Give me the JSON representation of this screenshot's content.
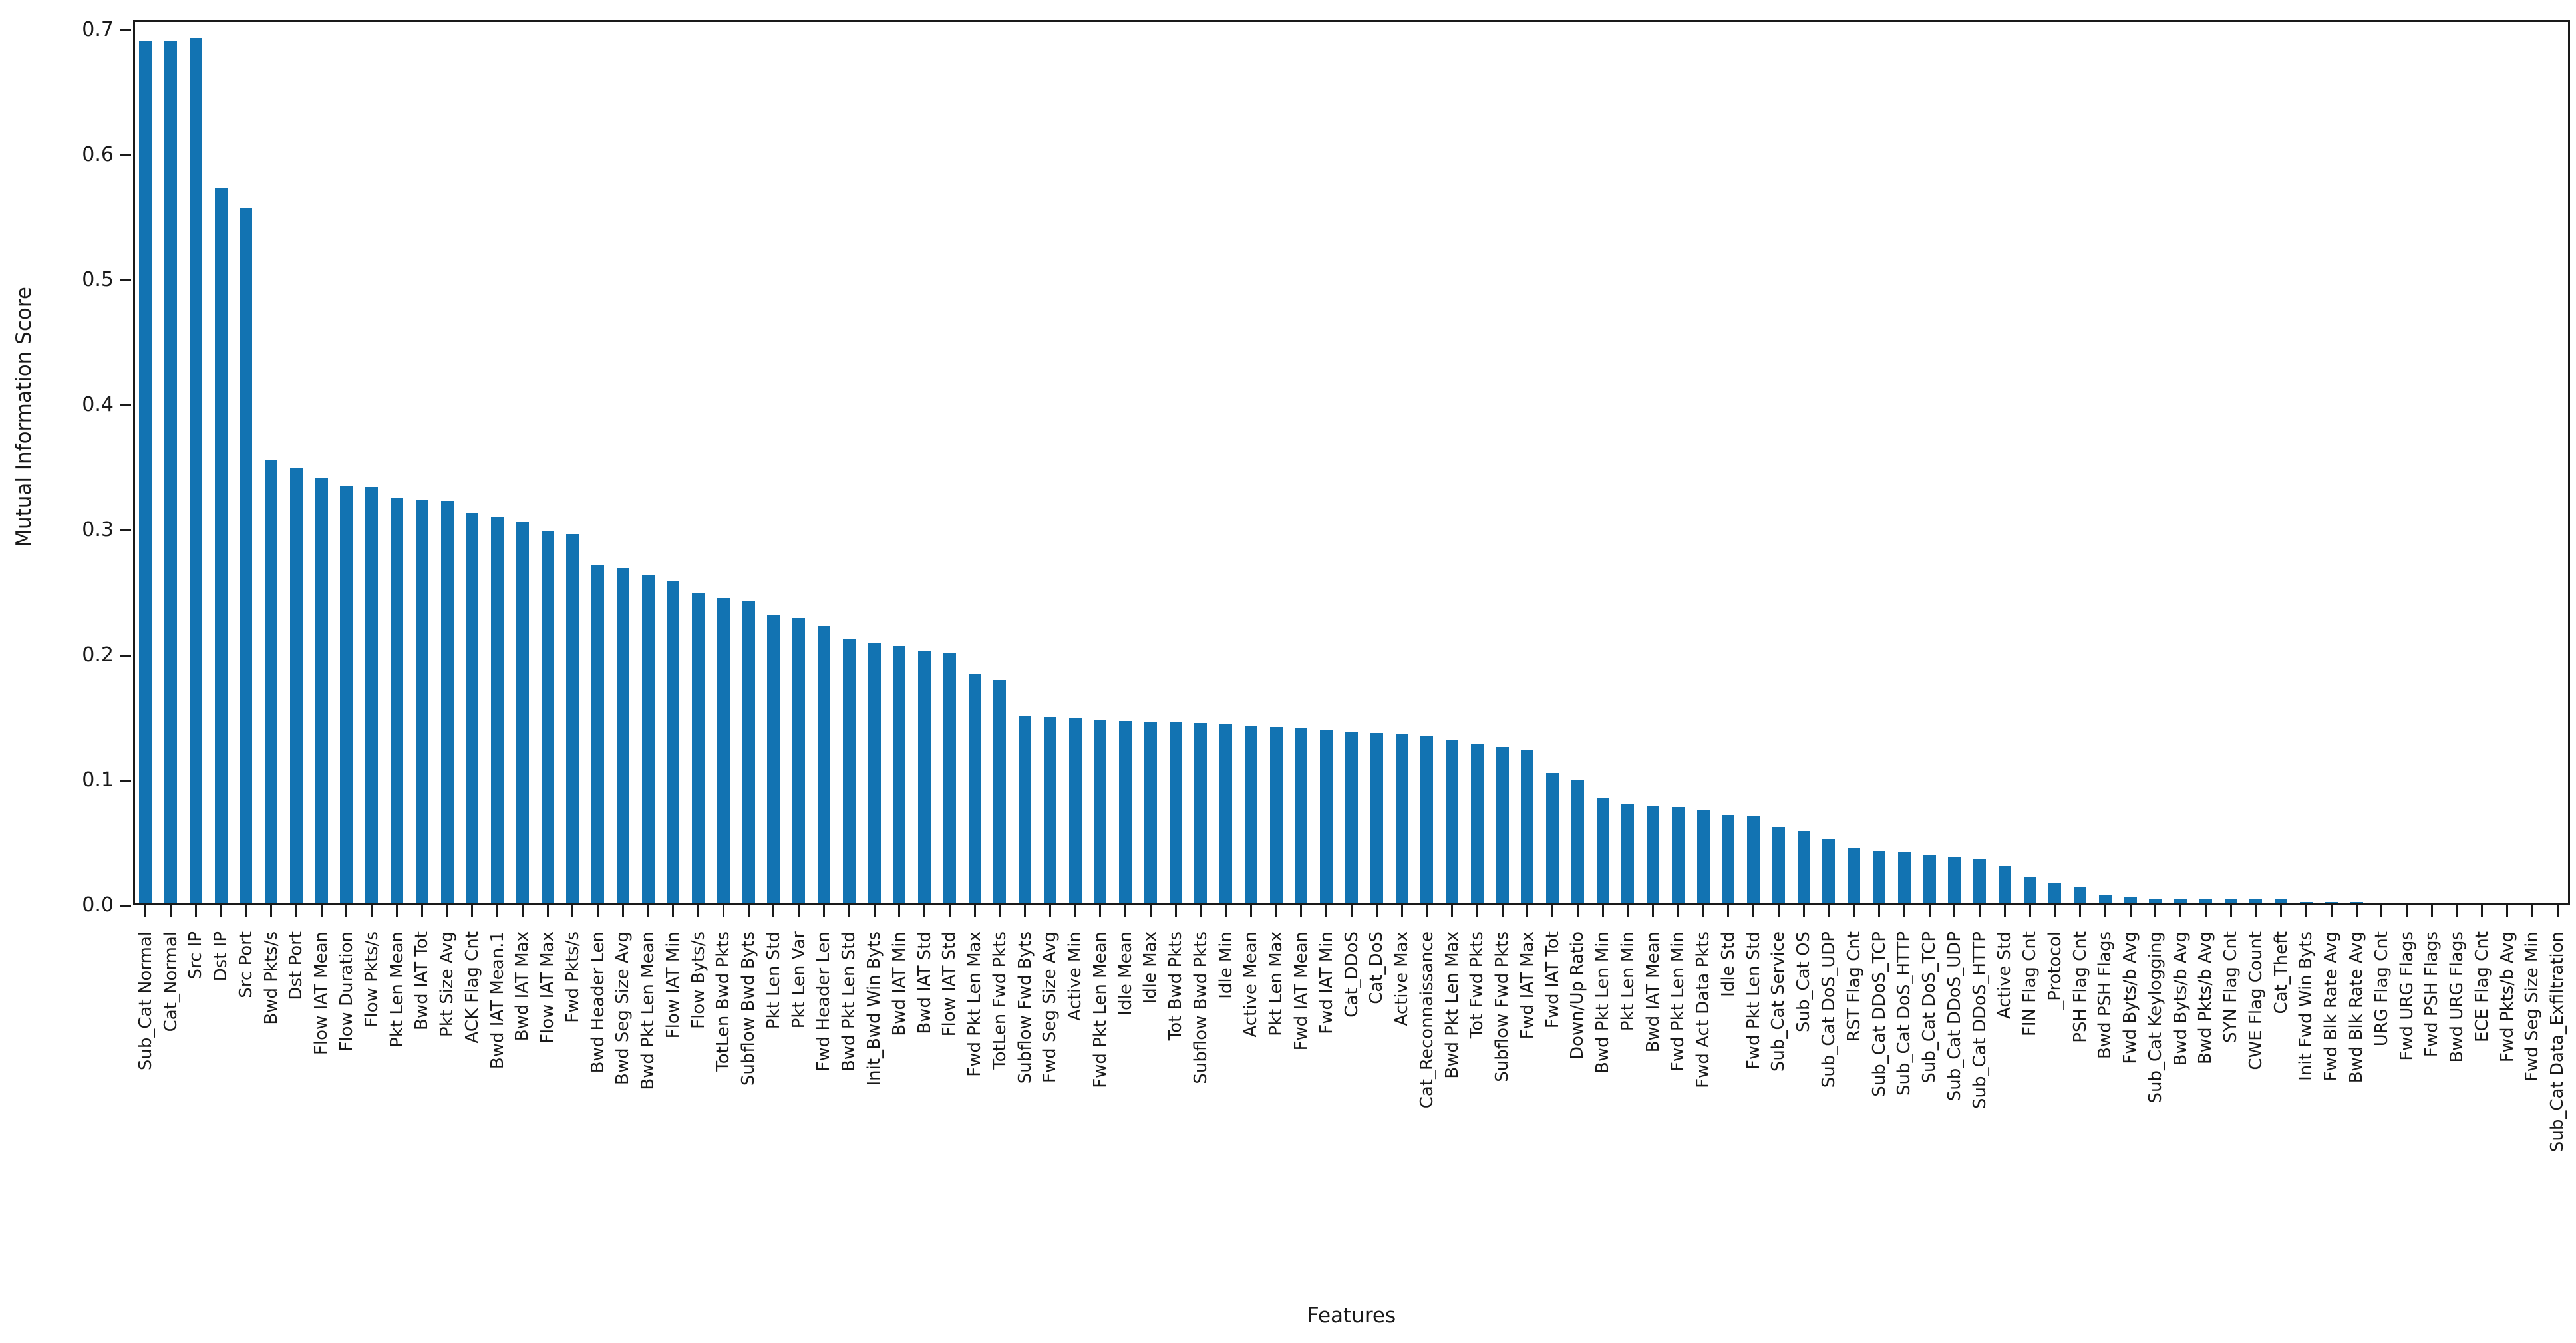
{
  "figure": {
    "background": "#ffffff",
    "bar_color": "#1273b2",
    "axis_color": "#1a1a1a"
  },
  "chart_data": {
    "type": "bar",
    "title": "",
    "xlabel": "Features",
    "ylabel": "Mutual Information Score",
    "ylim": [
      0,
      0.7
    ],
    "yticks": [
      "0.0",
      "0.1",
      "0.2",
      "0.3",
      "0.4",
      "0.5",
      "0.6",
      "0.7"
    ],
    "grid": false,
    "legend_position": "none",
    "categories": [
      "Sub_Cat Normal",
      "Cat_Normal",
      "Src IP",
      "Dst IP",
      "Src Port",
      "Bwd Pkts/s",
      "Dst Port",
      "Flow IAT Mean",
      "Flow Duration",
      "Flow Pkts/s",
      "Pkt Len Mean",
      "Bwd IAT Tot",
      "Pkt Size Avg",
      "ACK Flag Cnt",
      "Bwd IAT Mean.1",
      "Bwd IAT Max",
      "Flow IAT Max",
      "Fwd Pkts/s",
      "Bwd Header Len",
      "Bwd Seg Size Avg",
      "Bwd Pkt Len Mean",
      "Flow IAT Min",
      "Flow Byts/s",
      "TotLen Bwd Pkts",
      "Subflow Bwd Byts",
      "Pkt Len Std",
      "Pkt Len Var",
      "Fwd Header Len",
      "Bwd Pkt Len Std",
      "Init_Bwd Win Byts",
      "Bwd IAT Min",
      "Bwd IAT Std",
      "Flow IAT Std",
      "Fwd Pkt Len Max",
      "TotLen Fwd Pkts",
      "Subflow Fwd Byts",
      "Fwd Seg Size Avg",
      "Active Min",
      "Fwd Pkt Len Mean",
      "Idle Mean",
      "Idle Max",
      "Tot Bwd Pkts",
      "Subflow Bwd Pkts",
      "Idle Min",
      "Active Mean",
      "Pkt Len Max",
      "Fwd IAT Mean",
      "Fwd IAT Min",
      "Cat_DDoS",
      "Cat_DoS",
      "Active Max",
      "Cat_Reconnaissance",
      "Bwd Pkt Len Max",
      "Tot Fwd Pkts",
      "Subflow Fwd Pkts",
      "Fwd IAT Max",
      "Fwd IAT Tot",
      "Down/Up Ratio",
      "Bwd Pkt Len Min",
      "Pkt Len Min",
      "Bwd IAT Mean",
      "Fwd Pkt Len Min",
      "Fwd Act Data Pkts",
      "Idle Std",
      "Fwd Pkt Len Std",
      "Sub_Cat Service",
      "Sub_Cat OS",
      "Sub_Cat DoS_UDP",
      "RST Flag Cnt",
      "Sub_Cat DDoS_TCP",
      "Sub_Cat DoS_HTTP",
      "Sub_Cat DoS_TCP",
      "Sub_Cat DDoS_UDP",
      "Sub_Cat DDoS_HTTP",
      "Active Std",
      "FIN Flag Cnt",
      "_Protocol",
      "PSH Flag Cnt",
      "Bwd PSH Flags",
      "Fwd Byts/b Avg",
      "Sub_Cat Keylogging",
      "Bwd Byts/b Avg",
      "Bwd Pkts/b Avg",
      "SYN Flag Cnt",
      "CWE Flag Count",
      "Cat_Theft",
      "Init Fwd Win Byts",
      "Fwd Blk Rate Avg",
      "Bwd Blk Rate Avg",
      "URG Flag Cnt",
      "Fwd URG Flags",
      "Fwd PSH Flags",
      "Bwd URG Flags",
      "ECE Flag Cnt",
      "Fwd Pkts/b Avg",
      "Fwd Seg Size Min",
      "Sub_Cat Data_Exfiltration"
    ],
    "values": [
      0.69,
      0.69,
      0.692,
      0.572,
      0.556,
      0.355,
      0.348,
      0.34,
      0.334,
      0.333,
      0.324,
      0.323,
      0.322,
      0.312,
      0.309,
      0.305,
      0.298,
      0.295,
      0.27,
      0.268,
      0.262,
      0.258,
      0.248,
      0.244,
      0.242,
      0.231,
      0.228,
      0.222,
      0.211,
      0.208,
      0.206,
      0.202,
      0.2,
      0.183,
      0.178,
      0.15,
      0.149,
      0.148,
      0.147,
      0.146,
      0.145,
      0.145,
      0.144,
      0.143,
      0.142,
      0.141,
      0.14,
      0.139,
      0.137,
      0.136,
      0.135,
      0.134,
      0.131,
      0.127,
      0.125,
      0.123,
      0.104,
      0.099,
      0.084,
      0.079,
      0.078,
      0.077,
      0.075,
      0.071,
      0.07,
      0.061,
      0.058,
      0.051,
      0.044,
      0.042,
      0.041,
      0.039,
      0.037,
      0.035,
      0.03,
      0.021,
      0.016,
      0.013,
      0.007,
      0.005,
      0.003,
      0.003,
      0.003,
      0.003,
      0.003,
      0.003,
      0.001,
      0.001,
      0.001,
      0.0005,
      0.0005,
      0.0005,
      0.0005,
      0.0005,
      0.0005,
      0.0005,
      0.0
    ]
  }
}
